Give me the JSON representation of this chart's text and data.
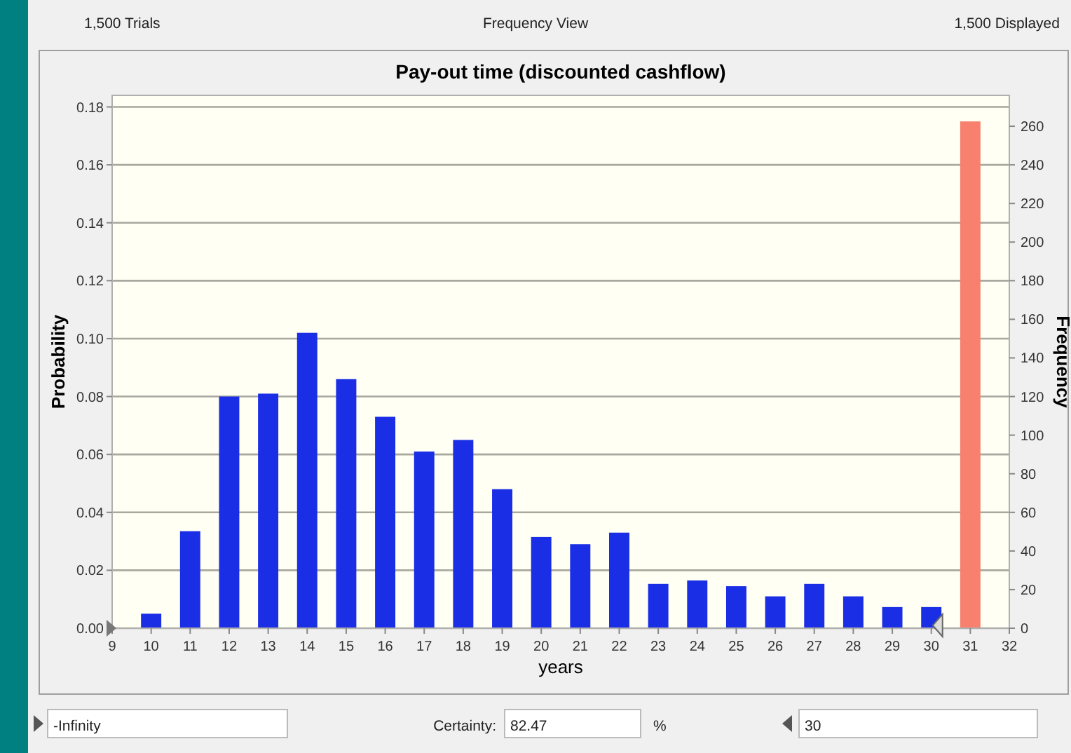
{
  "chart_data": {
    "type": "bar",
    "title": "Pay-out time (discounted cashflow)",
    "xlabel": "years",
    "ylabel": "Probability",
    "y2label": "Frequency",
    "x": [
      10,
      11,
      12,
      13,
      14,
      15,
      16,
      17,
      18,
      19,
      20,
      21,
      22,
      23,
      24,
      25,
      26,
      27,
      28,
      29,
      30,
      31
    ],
    "series": [
      {
        "colors": [
          "#1a2ee6",
          "#1a2ee6",
          "#1a2ee6",
          "#1a2ee6",
          "#1a2ee6",
          "#1a2ee6",
          "#1a2ee6",
          "#1a2ee6",
          "#1a2ee6",
          "#1a2ee6",
          "#1a2ee6",
          "#1a2ee6",
          "#1a2ee6",
          "#1a2ee6",
          "#1a2ee6",
          "#1a2ee6",
          "#1a2ee6",
          "#1a2ee6",
          "#1a2ee6",
          "#1a2ee6",
          "#1a2ee6",
          "#f7806f"
        ],
        "values": [
          0.005,
          0.0335,
          0.08,
          0.081,
          0.102,
          0.086,
          0.073,
          0.061,
          0.065,
          0.048,
          0.0315,
          0.029,
          0.033,
          0.0153,
          0.0165,
          0.0145,
          0.011,
          0.0153,
          0.011,
          0.0073,
          0.0073,
          0.175
        ]
      }
    ],
    "xlim": [
      9,
      32
    ],
    "xticks": [
      9,
      10,
      11,
      12,
      13,
      14,
      15,
      16,
      17,
      18,
      19,
      20,
      21,
      22,
      23,
      24,
      25,
      26,
      27,
      28,
      29,
      30,
      31,
      32
    ],
    "ylim": [
      0,
      0.184
    ],
    "yticks": [
      {
        "value": 0,
        "label": "0.00"
      },
      {
        "value": 0.02,
        "label": "0.02"
      },
      {
        "value": 0.04,
        "label": "0.04"
      },
      {
        "value": 0.06,
        "label": "0.06"
      },
      {
        "value": 0.08,
        "label": "0.08"
      },
      {
        "value": 0.1,
        "label": "0.10"
      },
      {
        "value": 0.12,
        "label": "0.12"
      },
      {
        "value": 0.14,
        "label": "0.14"
      },
      {
        "value": 0.16,
        "label": "0.16"
      },
      {
        "value": 0.18,
        "label": "0.18"
      }
    ],
    "y2lim": [
      0,
      276
    ],
    "y2ticks": [
      0,
      20,
      40,
      60,
      80,
      100,
      120,
      140,
      160,
      180,
      200,
      220,
      240,
      260
    ],
    "grid": "y",
    "annotations": [
      "1,500 Trials",
      "Frequency View",
      "1,500 Displayed",
      "-Infinity",
      "Certainty:",
      "82.47",
      "%",
      "30"
    ]
  }
}
